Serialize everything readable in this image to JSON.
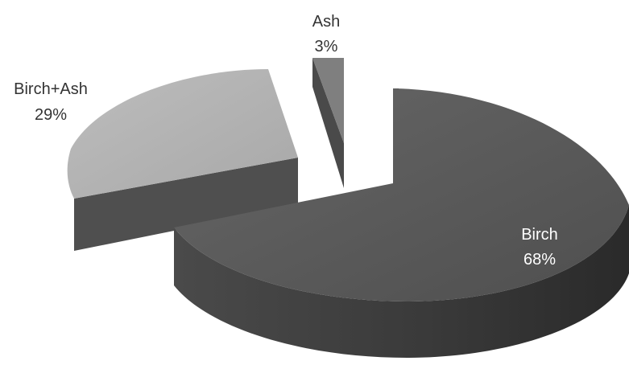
{
  "chart_data": {
    "type": "pie",
    "style": "3d-exploded",
    "slices": [
      {
        "label": "Birch",
        "value": 68,
        "value_label": "68%",
        "color": "#595959",
        "label_color": "#ffffff"
      },
      {
        "label": "Birch+Ash",
        "value": 29,
        "value_label": "29%",
        "color": "#b3b3b3",
        "label_color": "#333333"
      },
      {
        "label": "Ash",
        "value": 3,
        "value_label": "3%",
        "color": "#7f7f7f",
        "label_color": "#333333"
      }
    ]
  }
}
